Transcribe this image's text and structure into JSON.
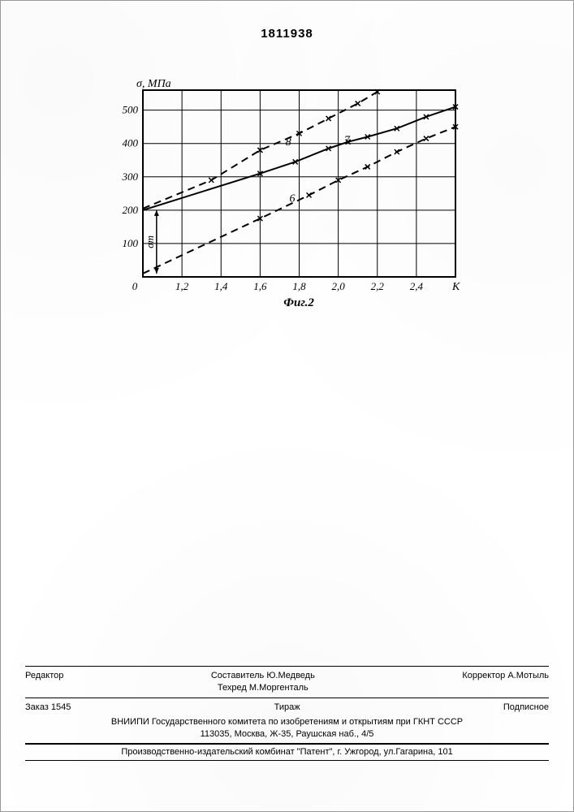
{
  "page_number": "1811938",
  "chart": {
    "type": "line",
    "ylabel": "σ, МПа",
    "xlabel_right": "К",
    "caption": "Фиг.2",
    "sigma_m_label": "σm",
    "xlim": [
      1.0,
      2.6
    ],
    "ylim": [
      0,
      560
    ],
    "xticks": [
      1.2,
      1.4,
      1.6,
      1.8,
      2.0,
      2.2,
      2.4
    ],
    "yticks": [
      100,
      200,
      300,
      400,
      500
    ],
    "xorigin_label": "0",
    "grid_color": "#000000",
    "background_color": "#ffffff",
    "axis_color": "#000000",
    "label_fontsize": 14,
    "tick_fontsize": 13,
    "line_width": 2,
    "marker": "x",
    "marker_size": 6,
    "series": [
      {
        "id": "6",
        "label": "6",
        "label_pos": [
          1.75,
          225
        ],
        "color": "#000000",
        "style": "dashed",
        "points": [
          [
            1.0,
            10
          ],
          [
            1.6,
            175
          ],
          [
            1.85,
            245
          ],
          [
            2.0,
            290
          ],
          [
            2.15,
            330
          ],
          [
            2.3,
            375
          ],
          [
            2.45,
            415
          ],
          [
            2.6,
            450
          ]
        ]
      },
      {
        "id": "7",
        "label": "7",
        "label_pos": [
          2.03,
          400
        ],
        "color": "#000000",
        "style": "solid",
        "points": [
          [
            1.0,
            200
          ],
          [
            1.6,
            310
          ],
          [
            1.78,
            345
          ],
          [
            1.95,
            385
          ],
          [
            2.05,
            405
          ],
          [
            2.15,
            420
          ],
          [
            2.3,
            445
          ],
          [
            2.45,
            480
          ],
          [
            2.6,
            510
          ]
        ]
      },
      {
        "id": "8",
        "label": "8",
        "label_pos": [
          1.73,
          395
        ],
        "color": "#000000",
        "style": "dashed",
        "points": [
          [
            1.0,
            205
          ],
          [
            1.35,
            290
          ],
          [
            1.6,
            380
          ],
          [
            1.8,
            430
          ],
          [
            1.95,
            475
          ],
          [
            2.1,
            520
          ],
          [
            2.2,
            555
          ],
          [
            2.3,
            590
          ]
        ]
      }
    ],
    "arrow": {
      "x": 1.07,
      "y_from": 10,
      "y_to": 200
    }
  },
  "footer": {
    "editor_label": "Редактор",
    "compiler": "Составитель Ю.Медведь",
    "techred": "Техред М.Моргенталь",
    "corrector": "Корректор  А.Мотыль",
    "order": "Заказ 1545",
    "tirazh": "Тираж",
    "podpisnoe": "Подписное",
    "org_line1": "ВНИИПИ Государственного комитета по изобретениям и открытиям при ГКНТ СССР",
    "org_line2": "113035, Москва, Ж-35, Раушская наб., 4/5",
    "press_line": "Производственно-издательский комбинат \"Патент\", г. Ужгород, ул.Гагарина, 101"
  }
}
